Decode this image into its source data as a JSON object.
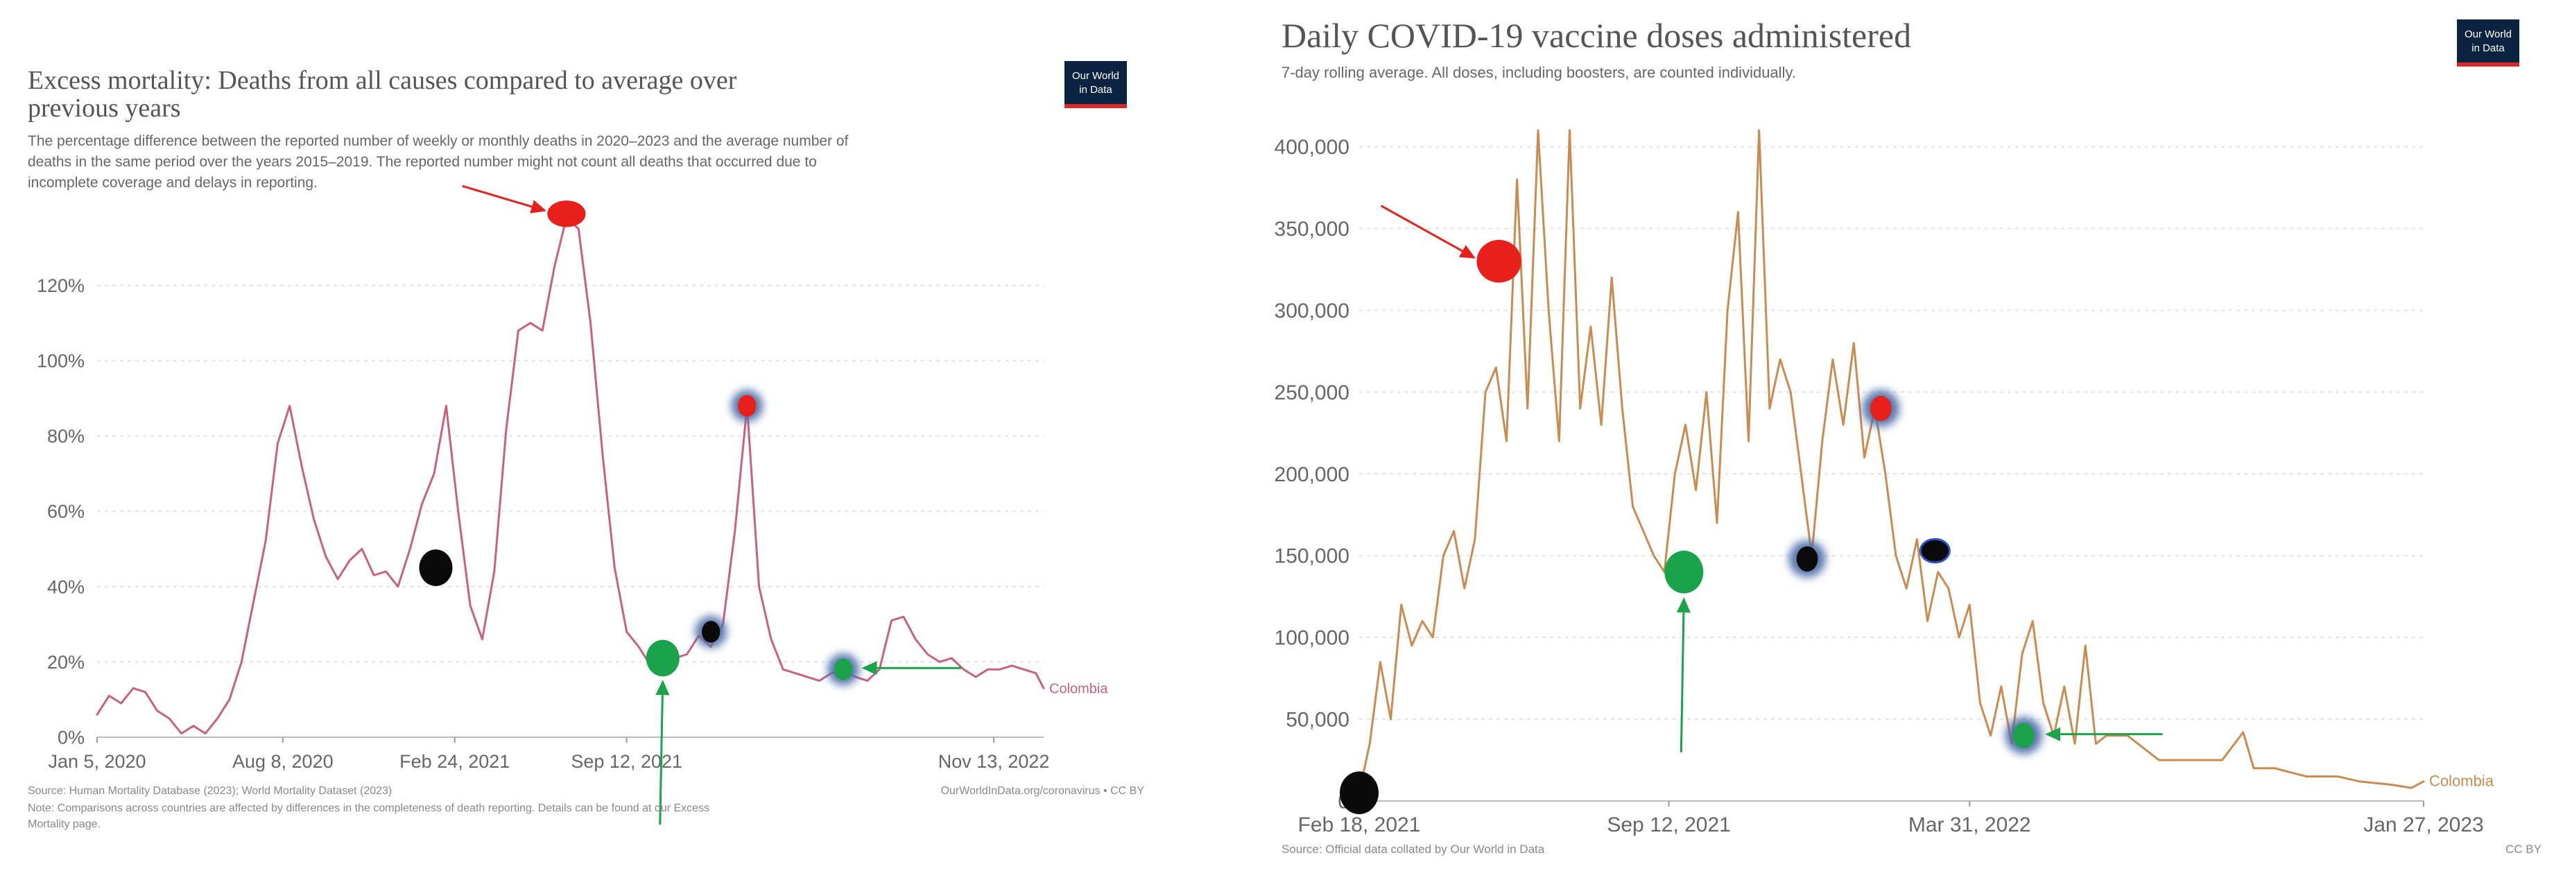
{
  "colors": {
    "excess_line": "#c8627c",
    "vaccine_line": "#c98b4f",
    "logo_bg": "#0b2341",
    "logo_accent": "#d42b2b",
    "marker_red": "#e8201c",
    "marker_green": "#1aa34a",
    "marker_black": "#0a0a0a",
    "marker_blue_halo": "#4f6fa8"
  },
  "left": {
    "title": "Excess mortality: Deaths from all causes compared to average over previous years",
    "title_lines": [
      "Excess mortality: Deaths from all causes compared to average over",
      "previous years"
    ],
    "subtitle_lines": [
      "The percentage difference between the reported number of weekly or monthly deaths in 2020–2023 and the average number of",
      "deaths in the same period over the years 2015–2019. The reported number might not count all deaths that occurred due to",
      "incomplete coverage and delays in reporting."
    ],
    "logo_lines": [
      "Our World",
      "in Data"
    ],
    "series_label": "Colombia",
    "source_line": "Source: Human Mortality Database (2023); World Mortality Dataset (2023)",
    "url_line": "OurWorldInData.org/coronavirus • CC BY",
    "note_lines": [
      "Note: Comparisons across countries are affected by differences in the completeness of death reporting. Details can be found at our Excess",
      "Mortality page."
    ]
  },
  "right": {
    "title": "Daily COVID-19 vaccine doses administered",
    "subtitle": "7-day rolling average. All doses, including boosters, are counted individually.",
    "logo_lines": [
      "Our World",
      "in Data"
    ],
    "series_label": "Colombia",
    "source_line": "Source: Official data collated by Our World in Data",
    "license": "CC BY"
  },
  "chart_data": [
    {
      "type": "line",
      "title": "Excess mortality: Deaths from all causes compared to average over previous years",
      "ylabel": "",
      "xlabel": "",
      "ylim": [
        0,
        135
      ],
      "grid": true,
      "x_range": [
        "2020-01-05",
        "2023-01-10"
      ],
      "yticks": [
        0,
        20,
        40,
        60,
        80,
        100,
        120
      ],
      "ytick_labels": [
        "0%",
        "20%",
        "40%",
        "60%",
        "80%",
        "100%",
        "120%"
      ],
      "xticks": [
        "2020-01-05",
        "2020-08-08",
        "2021-02-24",
        "2021-09-12",
        "2022-11-13"
      ],
      "xtick_labels": [
        "Jan 5, 2020",
        "Aug 8, 2020",
        "Feb 24, 2021",
        "Sep 12, 2021",
        "Nov 13, 2022"
      ],
      "series": [
        {
          "name": "Colombia",
          "x": [
            "2020-01-05",
            "2020-01-19",
            "2020-02-02",
            "2020-02-16",
            "2020-03-01",
            "2020-03-15",
            "2020-03-29",
            "2020-04-12",
            "2020-04-26",
            "2020-05-10",
            "2020-05-24",
            "2020-06-07",
            "2020-06-21",
            "2020-07-05",
            "2020-07-19",
            "2020-08-02",
            "2020-08-16",
            "2020-08-30",
            "2020-09-13",
            "2020-09-27",
            "2020-10-11",
            "2020-10-25",
            "2020-11-08",
            "2020-11-22",
            "2020-12-06",
            "2020-12-20",
            "2021-01-03",
            "2021-01-17",
            "2021-01-31",
            "2021-02-14",
            "2021-02-28",
            "2021-03-14",
            "2021-03-28",
            "2021-04-11",
            "2021-04-25",
            "2021-05-09",
            "2021-05-23",
            "2021-06-06",
            "2021-06-20",
            "2021-07-04",
            "2021-07-18",
            "2021-08-01",
            "2021-08-15",
            "2021-08-29",
            "2021-09-12",
            "2021-09-26",
            "2021-10-10",
            "2021-10-24",
            "2021-11-07",
            "2021-11-21",
            "2021-12-05",
            "2021-12-19",
            "2022-01-02",
            "2022-01-16",
            "2022-01-30",
            "2022-02-13",
            "2022-02-27",
            "2022-03-13",
            "2022-03-27",
            "2022-04-10",
            "2022-04-24",
            "2022-05-08",
            "2022-05-22",
            "2022-06-05",
            "2022-06-19",
            "2022-07-03",
            "2022-07-17",
            "2022-07-31",
            "2022-08-14",
            "2022-08-28",
            "2022-09-11",
            "2022-09-25",
            "2022-10-09",
            "2022-10-23",
            "2022-11-06",
            "2022-11-20",
            "2022-12-04",
            "2022-12-18",
            "2023-01-01",
            "2023-01-10"
          ],
          "y": [
            6,
            11,
            9,
            13,
            12,
            7,
            5,
            1,
            3,
            1,
            5,
            10,
            20,
            36,
            52,
            78,
            88,
            72,
            58,
            48,
            42,
            47,
            50,
            43,
            44,
            40,
            50,
            62,
            70,
            88,
            60,
            35,
            26,
            44,
            82,
            108,
            110,
            108,
            125,
            138,
            135,
            110,
            75,
            45,
            28,
            24,
            19,
            18,
            21,
            22,
            27,
            24,
            30,
            55,
            88,
            40,
            26,
            18,
            17,
            16,
            15,
            17,
            18,
            16,
            15,
            18,
            31,
            32,
            26,
            22,
            20,
            21,
            18,
            16,
            18,
            18,
            19,
            18,
            17,
            13
          ]
        }
      ],
      "annotations": [
        {
          "shape": "dot",
          "color": "red",
          "x": "2021-07-04",
          "y": 139
        },
        {
          "shape": "dot",
          "color": "black",
          "x": "2021-02-02",
          "y": 45
        },
        {
          "shape": "dot",
          "color": "green",
          "x": "2021-10-24",
          "y": 21
        },
        {
          "shape": "dot",
          "color": "black-halo",
          "x": "2021-12-19",
          "y": 28
        },
        {
          "shape": "dot",
          "color": "red-halo",
          "x": "2022-01-30",
          "y": 88
        },
        {
          "shape": "dot",
          "color": "green-halo",
          "x": "2022-05-22",
          "y": 18
        },
        {
          "shape": "arrow",
          "color": "red",
          "note": "points at the peak dot"
        },
        {
          "shape": "arrow",
          "color": "green",
          "note": "points up at the green dot"
        },
        {
          "shape": "arrow",
          "color": "green",
          "note": "points left at the halo dot"
        }
      ]
    },
    {
      "type": "line",
      "title": "Daily COVID-19 vaccine doses administered",
      "ylabel": "",
      "xlabel": "",
      "ylim": [
        0,
        410000
      ],
      "grid": true,
      "x_range": [
        "2021-02-18",
        "2023-01-27"
      ],
      "yticks": [
        0,
        50000,
        100000,
        150000,
        200000,
        250000,
        300000,
        350000,
        400000
      ],
      "ytick_labels": [
        "0",
        "50,000",
        "100,000",
        "150,000",
        "200,000",
        "250,000",
        "300,000",
        "350,000",
        "400,000"
      ],
      "xticks": [
        "2021-02-18",
        "2021-09-12",
        "2022-03-31",
        "2023-01-27"
      ],
      "xtick_labels": [
        "Feb 18, 2021",
        "Sep 12, 2021",
        "Mar 31, 2022",
        "Jan 27, 2023"
      ],
      "series": [
        {
          "name": "Colombia",
          "x": [
            "2021-02-18",
            "2021-02-25",
            "2021-03-04",
            "2021-03-11",
            "2021-03-18",
            "2021-03-25",
            "2021-04-01",
            "2021-04-08",
            "2021-04-15",
            "2021-04-22",
            "2021-04-29",
            "2021-05-06",
            "2021-05-13",
            "2021-05-20",
            "2021-05-27",
            "2021-06-03",
            "2021-06-10",
            "2021-06-17",
            "2021-06-24",
            "2021-07-01",
            "2021-07-08",
            "2021-07-15",
            "2021-07-22",
            "2021-07-29",
            "2021-08-05",
            "2021-08-12",
            "2021-08-19",
            "2021-08-26",
            "2021-09-02",
            "2021-09-09",
            "2021-09-16",
            "2021-09-23",
            "2021-09-30",
            "2021-10-07",
            "2021-10-14",
            "2021-10-21",
            "2021-10-28",
            "2021-11-04",
            "2021-11-11",
            "2021-11-18",
            "2021-11-25",
            "2021-12-02",
            "2021-12-09",
            "2021-12-16",
            "2021-12-23",
            "2021-12-30",
            "2022-01-06",
            "2022-01-13",
            "2022-01-20",
            "2022-01-27",
            "2022-02-03",
            "2022-02-10",
            "2022-02-17",
            "2022-02-24",
            "2022-03-03",
            "2022-03-10",
            "2022-03-17",
            "2022-03-24",
            "2022-03-31",
            "2022-04-07",
            "2022-04-14",
            "2022-04-21",
            "2022-04-28",
            "2022-05-05",
            "2022-05-12",
            "2022-05-19",
            "2022-05-26",
            "2022-06-02",
            "2022-06-09",
            "2022-06-16",
            "2022-06-23",
            "2022-06-30",
            "2022-07-14",
            "2022-08-04",
            "2022-08-25",
            "2022-09-15",
            "2022-09-29",
            "2022-10-06",
            "2022-10-20",
            "2022-11-10",
            "2022-12-01",
            "2022-12-15",
            "2023-01-05",
            "2023-01-19",
            "2023-01-27"
          ],
          "y": [
            5000,
            35000,
            85000,
            50000,
            120000,
            95000,
            110000,
            100000,
            150000,
            165000,
            130000,
            160000,
            250000,
            265000,
            220000,
            380000,
            240000,
            410000,
            300000,
            220000,
            410000,
            240000,
            290000,
            230000,
            320000,
            240000,
            180000,
            165000,
            150000,
            140000,
            200000,
            230000,
            190000,
            250000,
            170000,
            300000,
            360000,
            220000,
            410000,
            240000,
            270000,
            250000,
            200000,
            150000,
            220000,
            270000,
            230000,
            280000,
            210000,
            240000,
            200000,
            150000,
            130000,
            160000,
            110000,
            140000,
            130000,
            100000,
            120000,
            60000,
            40000,
            70000,
            35000,
            90000,
            110000,
            60000,
            40000,
            70000,
            35000,
            95000,
            35000,
            40000,
            40000,
            25000,
            25000,
            25000,
            42000,
            20000,
            20000,
            15000,
            15000,
            12000,
            10000,
            8000,
            12000
          ]
        }
      ],
      "annotations": [
        {
          "shape": "dot",
          "color": "red",
          "x": "2021-05-22",
          "y": 330000
        },
        {
          "shape": "dot",
          "color": "black",
          "x": "2021-02-18",
          "y": 5000
        },
        {
          "shape": "dot",
          "color": "green",
          "x": "2021-09-22",
          "y": 140000
        },
        {
          "shape": "dot",
          "color": "black-halo",
          "x": "2021-12-13",
          "y": 148000
        },
        {
          "shape": "dot",
          "color": "red-halo",
          "x": "2022-01-31",
          "y": 240000
        },
        {
          "shape": "dot",
          "color": "black-ring",
          "x": "2022-03-08",
          "y": 153000
        },
        {
          "shape": "dot",
          "color": "green-halo",
          "x": "2022-05-06",
          "y": 40000
        },
        {
          "shape": "arrow",
          "color": "red",
          "note": "points at the red dot"
        },
        {
          "shape": "arrow",
          "color": "green",
          "note": "points up at the green dot"
        },
        {
          "shape": "arrow",
          "color": "green",
          "note": "points left at the halo dot"
        }
      ]
    }
  ]
}
